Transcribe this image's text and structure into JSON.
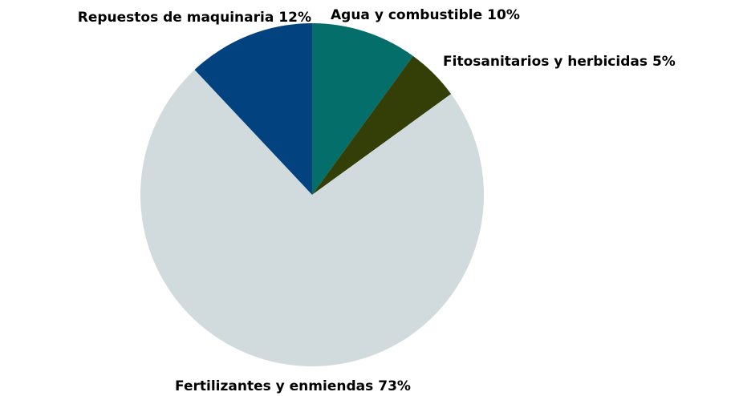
{
  "chart_data": {
    "type": "pie",
    "categories": [
      "Agua y combustible",
      "Fitosanitarios y herbicidas",
      "Fertilizantes y enmiendas",
      "Repuestos de maquinaria"
    ],
    "values": [
      10,
      5,
      73,
      12
    ],
    "value_labels": [
      "10%",
      "5%",
      "73%",
      "12%"
    ],
    "colors": [
      "#036e6a",
      "#333f06",
      "#d1dbdd",
      "#02427f"
    ]
  }
}
